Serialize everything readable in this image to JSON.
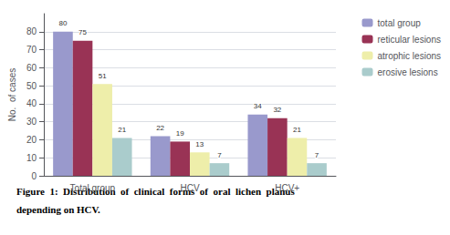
{
  "chart_data": {
    "type": "bar",
    "ylabel": "No.  of cases",
    "annotations": [
      "Figure  1:  Distribution  of  clinical  forms  of  oral  lichen  planus",
      "depending on HCV."
    ],
    "categories": [
      "Total group",
      "HCV",
      "HCV+"
    ],
    "series": [
      {
        "name": "total group",
        "values": [
          80,
          22,
          34
        ],
        "color": "#9999cc"
      },
      {
        "name": "reticular lesions",
        "values": [
          75,
          19,
          32
        ],
        "color": "#993355"
      },
      {
        "name": "atrophic lesions",
        "values": [
          51,
          13,
          21
        ],
        "color": "#eeeeaa"
      },
      {
        "name": "erosive lesions",
        "values": [
          21,
          7,
          7
        ],
        "color": "#aacccc"
      }
    ],
    "ylim": [
      0,
      90
    ],
    "yticks": [
      0,
      10,
      20,
      30,
      40,
      50,
      60,
      70,
      80
    ],
    "grid": true,
    "legend": "upper right",
    "data_labels": true
  }
}
